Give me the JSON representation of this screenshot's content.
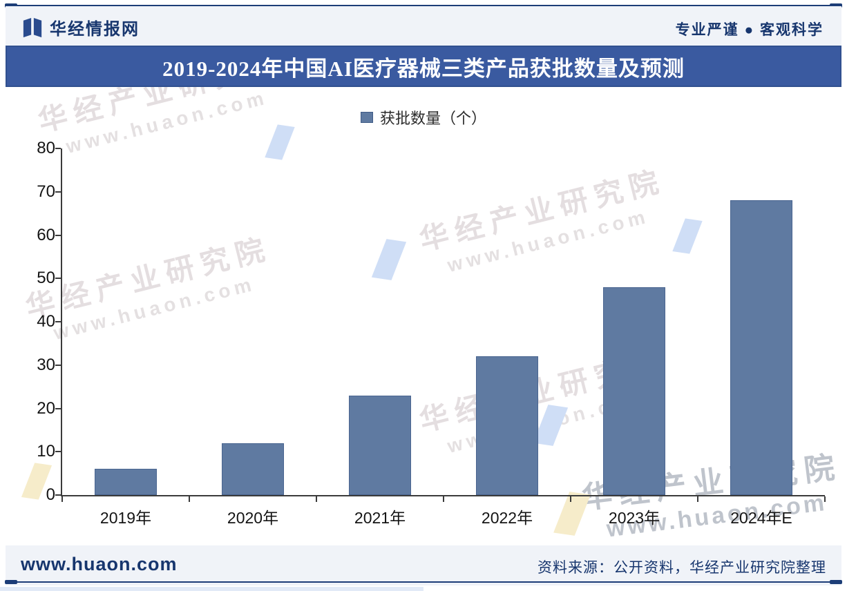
{
  "header": {
    "brand": "华经情报网",
    "slogan": "专业严谨 ● 客观科学",
    "logo_icon": "open-book-flag-icon"
  },
  "title_bar": {
    "text": "2019-2024年中国AI医疗器械三类产品获批数量及预测"
  },
  "chart_data": {
    "type": "bar",
    "title": "2019-2024年中国AI医疗器械三类产品获批数量及预测",
    "legend": "获批数量（个）",
    "legend_position": "top-center",
    "categories": [
      "2019年",
      "2020年",
      "2021年",
      "2022年",
      "2023年",
      "2024年E"
    ],
    "values": [
      6,
      12,
      23,
      32,
      48,
      68
    ],
    "xlabel": "",
    "ylabel": "",
    "ylim": [
      0,
      80
    ],
    "ytick_step": 10,
    "grid": false,
    "bar_color": "#5F7AA1"
  },
  "watermark": {
    "line1": "华经产业研究院",
    "line2": "www.huaon.com"
  },
  "footer": {
    "website": "www.huaon.com",
    "source": "资料来源：公开资料，华经产业研究院整理"
  },
  "colors": {
    "title_bar_bg": "#3A5AA0",
    "accent_navy": "#1C3D77",
    "bar": "#5F7AA1",
    "strip_bg": "#F0F3F8"
  }
}
